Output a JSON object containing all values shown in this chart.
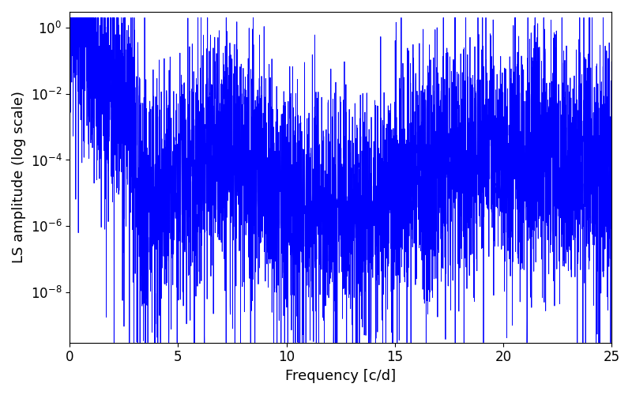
{
  "xlabel": "Frequency [c/d]",
  "ylabel": "LS amplitude (log scale)",
  "line_color": "#0000ff",
  "xlim": [
    0,
    25
  ],
  "ylim_bottom": 3e-10,
  "ylim_top": 3.0,
  "xmin": 0.0,
  "xmax": 25.0,
  "n_points": 5000,
  "seed": 17,
  "line_width": 0.6,
  "background_color": "#ffffff",
  "tick_labelsize": 12,
  "label_fontsize": 13
}
